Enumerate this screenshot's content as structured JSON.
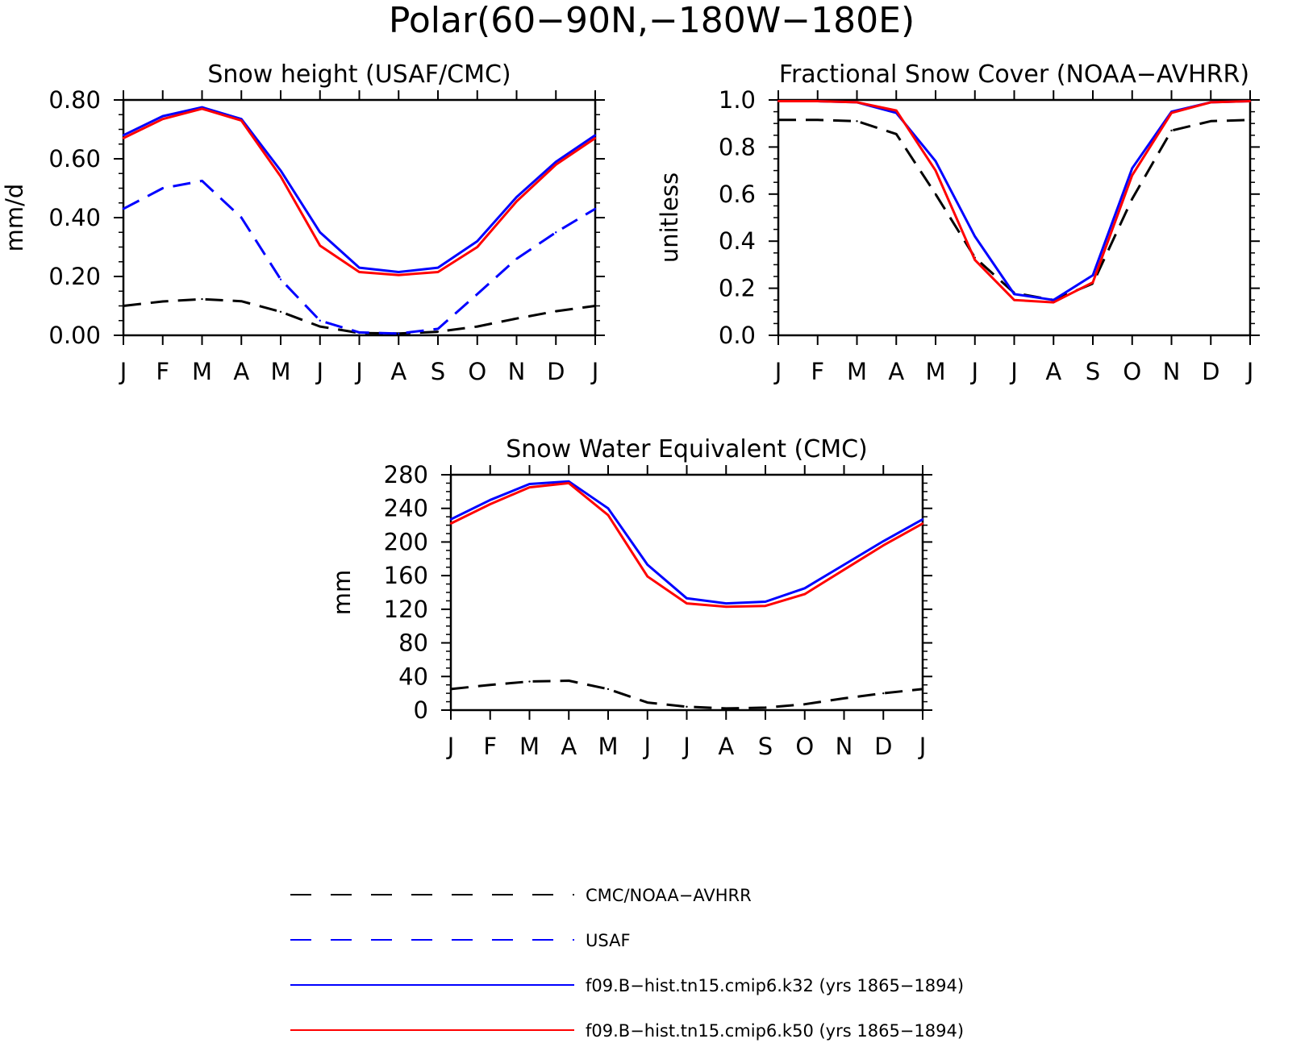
{
  "figure": {
    "title": "Polar(60−90N,−180W−180E)"
  },
  "colors": {
    "obs": "#000000",
    "usaf": "#0000ff",
    "k32": "#0000ff",
    "k50": "#ff0000"
  },
  "legend": [
    {
      "label": "CMC/NOAA−AVHRR",
      "color": "#000000",
      "style": "dashed"
    },
    {
      "label": "USAF",
      "color": "#0000ff",
      "style": "dashed"
    },
    {
      "label": "f09.B−hist.tn15.cmip6.k32 (yrs 1865−1894)",
      "color": "#0000ff",
      "style": "solid"
    },
    {
      "label": "f09.B−hist.tn15.cmip6.k50 (yrs 1865−1894)",
      "color": "#ff0000",
      "style": "solid"
    }
  ],
  "chart_data": [
    {
      "type": "line",
      "title": "Snow height (USAF/CMC)",
      "ylabel": "mm/d",
      "xlabel": "",
      "categories": [
        "J",
        "F",
        "M",
        "A",
        "M",
        "J",
        "J",
        "A",
        "S",
        "O",
        "N",
        "D",
        "J"
      ],
      "ylim": [
        0,
        0.8
      ],
      "yticks": [
        "0.00",
        "0.20",
        "0.40",
        "0.60",
        "0.80"
      ],
      "grid": false,
      "series": [
        {
          "name": "CMC/NOAA−AVHRR",
          "style": "dashed",
          "color": "#000000",
          "values": [
            0.1,
            0.115,
            0.123,
            0.116,
            0.08,
            0.03,
            0.008,
            0.006,
            0.012,
            0.03,
            0.057,
            0.082,
            0.1
          ]
        },
        {
          "name": "USAF",
          "style": "dashed",
          "color": "#0000ff",
          "values": [
            0.43,
            0.5,
            0.525,
            0.4,
            0.19,
            0.05,
            0.01,
            0.006,
            0.022,
            0.14,
            0.26,
            0.35,
            0.43
          ]
        },
        {
          "name": "f09.B−hist.tn15.cmip6.k32 (yrs 1865−1894)",
          "style": "solid",
          "color": "#0000ff",
          "values": [
            0.68,
            0.745,
            0.775,
            0.735,
            0.56,
            0.35,
            0.23,
            0.215,
            0.23,
            0.32,
            0.47,
            0.59,
            0.68
          ]
        },
        {
          "name": "f09.B−hist.tn15.cmip6.k50 (yrs 1865−1894)",
          "style": "solid",
          "color": "#ff0000",
          "values": [
            0.67,
            0.735,
            0.77,
            0.73,
            0.54,
            0.305,
            0.215,
            0.205,
            0.215,
            0.3,
            0.455,
            0.58,
            0.67
          ]
        }
      ]
    },
    {
      "type": "line",
      "title": "Fractional Snow Cover (NOAA−AVHRR)",
      "ylabel": "unitless",
      "xlabel": "",
      "categories": [
        "J",
        "F",
        "M",
        "A",
        "M",
        "J",
        "J",
        "A",
        "S",
        "O",
        "N",
        "D",
        "J"
      ],
      "ylim": [
        0,
        1.0
      ],
      "yticks": [
        "0.0",
        "0.2",
        "0.4",
        "0.6",
        "0.8",
        "1.0"
      ],
      "grid": false,
      "series": [
        {
          "name": "CMC/NOAA−AVHRR",
          "style": "dashed",
          "color": "#000000",
          "values": [
            0.915,
            0.915,
            0.91,
            0.855,
            0.6,
            0.33,
            0.18,
            0.15,
            0.22,
            0.58,
            0.87,
            0.91,
            0.915
          ]
        },
        {
          "name": "f09.B−hist.tn15.cmip6.k32 (yrs 1865−1894)",
          "style": "solid",
          "color": "#0000ff",
          "values": [
            0.995,
            0.995,
            0.99,
            0.945,
            0.74,
            0.42,
            0.175,
            0.15,
            0.255,
            0.71,
            0.95,
            0.99,
            0.995
          ]
        },
        {
          "name": "f09.B−hist.tn15.cmip6.k50 (yrs 1865−1894)",
          "style": "solid",
          "color": "#ff0000",
          "values": [
            0.995,
            0.995,
            0.99,
            0.955,
            0.7,
            0.32,
            0.15,
            0.14,
            0.225,
            0.68,
            0.945,
            0.99,
            0.995
          ]
        }
      ]
    },
    {
      "type": "line",
      "title": "Snow Water Equivalent (CMC)",
      "ylabel": "mm",
      "xlabel": "",
      "categories": [
        "J",
        "F",
        "M",
        "A",
        "M",
        "J",
        "J",
        "A",
        "S",
        "O",
        "N",
        "D",
        "J"
      ],
      "ylim": [
        0,
        280
      ],
      "yticks": [
        "0",
        "40",
        "80",
        "120",
        "160",
        "200",
        "240",
        "280"
      ],
      "grid": false,
      "series": [
        {
          "name": "CMC/NOAA−AVHRR",
          "style": "dashed",
          "color": "#000000",
          "values": [
            25,
            30,
            34,
            35,
            25,
            9,
            4,
            2,
            3,
            7,
            14,
            20,
            25
          ]
        },
        {
          "name": "f09.B−hist.tn15.cmip6.k32 (yrs 1865−1894)",
          "style": "solid",
          "color": "#0000ff",
          "values": [
            227,
            250,
            269,
            272,
            240,
            173,
            133,
            127,
            129,
            145,
            173,
            201,
            227
          ]
        },
        {
          "name": "f09.B−hist.tn15.cmip6.k50 (yrs 1865−1894)",
          "style": "solid",
          "color": "#ff0000",
          "values": [
            222,
            245,
            265,
            270,
            232,
            159,
            127,
            123,
            124,
            138,
            167,
            196,
            222
          ]
        }
      ]
    }
  ]
}
